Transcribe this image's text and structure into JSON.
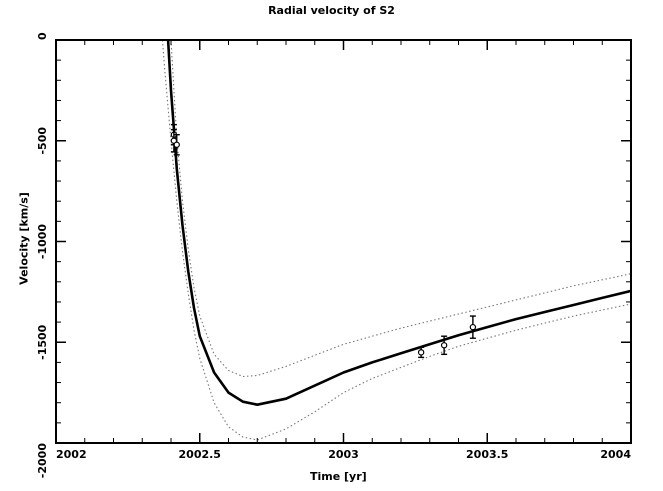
{
  "chart_data": {
    "type": "line",
    "title": "Radial velocity of S2",
    "xlabel": "Time   [yr]",
    "ylabel": "Velocity  [km/s]",
    "xlim": [
      2002,
      2004
    ],
    "ylim": [
      -2000,
      0
    ],
    "x_ticks": [
      2002,
      2002.5,
      2003,
      2003.5,
      2004
    ],
    "x_tick_labels": [
      "2002",
      "2002.5",
      "2003",
      "2003.5",
      "2004"
    ],
    "y_ticks": [
      0,
      -500,
      -1000,
      -1500,
      -2000
    ],
    "y_tick_labels": [
      "0",
      "-500",
      "-1000",
      "-1500",
      "-2000"
    ],
    "grid": false,
    "series": [
      {
        "style": "solid",
        "x": [
          2002.39,
          2002.4,
          2002.41,
          2002.42,
          2002.44,
          2002.46,
          2002.48,
          2002.5,
          2002.55,
          2002.6,
          2002.65,
          2002.7,
          2002.8,
          2002.9,
          2003.0,
          2003.1,
          2003.2,
          2003.3,
          2003.4,
          2003.5,
          2003.6,
          2003.7,
          2003.8,
          2003.9,
          2004.0
        ],
        "y": [
          0,
          -250,
          -440,
          -640,
          -920,
          -1150,
          -1330,
          -1470,
          -1650,
          -1750,
          -1795,
          -1810,
          -1780,
          -1715,
          -1650,
          -1600,
          -1555,
          -1510,
          -1465,
          -1425,
          -1385,
          -1350,
          -1315,
          -1280,
          -1245
        ]
      },
      {
        "style": "dotted",
        "x": [
          2002.4,
          2002.42,
          2002.44,
          2002.46,
          2002.48,
          2002.5,
          2002.55,
          2002.6,
          2002.65,
          2002.7,
          2002.8,
          2002.9,
          2003.0,
          2003.1,
          2003.2,
          2003.3,
          2003.4,
          2003.5,
          2003.6,
          2003.7,
          2003.8,
          2003.9,
          2004.0
        ],
        "y": [
          0,
          -490,
          -800,
          -1040,
          -1230,
          -1370,
          -1560,
          -1640,
          -1670,
          -1665,
          -1620,
          -1565,
          -1510,
          -1470,
          -1430,
          -1395,
          -1360,
          -1325,
          -1290,
          -1255,
          -1220,
          -1190,
          -1160
        ]
      },
      {
        "style": "dotted",
        "x": [
          2002.37,
          2002.38,
          2002.4,
          2002.42,
          2002.44,
          2002.46,
          2002.48,
          2002.5,
          2002.55,
          2002.6,
          2002.65,
          2002.7,
          2002.8,
          2002.9,
          2003.0,
          2003.1,
          2003.2,
          2003.3,
          2003.4,
          2003.5,
          2003.6,
          2003.7,
          2003.8,
          2003.9,
          2004.0
        ],
        "y": [
          0,
          -180,
          -500,
          -800,
          -1050,
          -1260,
          -1440,
          -1580,
          -1800,
          -1920,
          -1970,
          -1985,
          -1930,
          -1845,
          -1750,
          -1680,
          -1625,
          -1570,
          -1520,
          -1480,
          -1440,
          -1405,
          -1370,
          -1340,
          -1310
        ]
      }
    ],
    "data_points": [
      {
        "x": 2002.41,
        "y": -470,
        "err": 50
      },
      {
        "x": 2002.41,
        "y": -500,
        "err": 55
      },
      {
        "x": 2002.42,
        "y": -520,
        "err": 50
      },
      {
        "x": 2003.27,
        "y": -1550,
        "err": 25
      },
      {
        "x": 2003.35,
        "y": -1515,
        "err": 45
      },
      {
        "x": 2003.45,
        "y": -1425,
        "err": 55
      }
    ]
  }
}
